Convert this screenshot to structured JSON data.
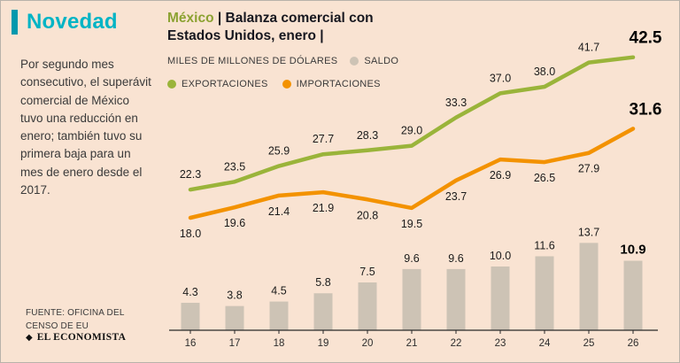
{
  "sidebar": {
    "kicker": "Novedad",
    "body": "Por segundo mes consecutivo, el superávit comercial de México tuvo una reducción en enero; también tuvo su primera baja para un mes de enero desde el 2017.",
    "source": "FUENTE: OFICINA DEL CENSO DE EU",
    "brand": "EL ECONOMISTA",
    "brand_mark": "◆"
  },
  "header": {
    "title_region": "México",
    "title_sep": " | ",
    "title_rest": "Balanza comercial con Estados Unidos, enero |"
  },
  "legend": {
    "units": "MILES DE MILLONES DE DÓLARES",
    "saldo": "SALDO",
    "exportaciones": "EXPORTACIONES",
    "importaciones": "IMPORTACIONES"
  },
  "colors": {
    "background": "#f9e3d2",
    "accent_teal": "#0098ad",
    "kicker_cyan": "#00b4c5",
    "title_green": "#8ca232",
    "dark_text": "#17171f",
    "exportaciones": "#9ab43a",
    "importaciones": "#f39200",
    "saldo": "#cdc3b5",
    "axis": "#2a2a2a"
  },
  "chart_data": {
    "type": "line+bar",
    "title": "México | Balanza comercial con Estados Unidos, enero",
    "units": "MILES DE MILLONES DE DÓLARES",
    "categories": [
      "16",
      "17",
      "18",
      "19",
      "20",
      "21",
      "22",
      "23",
      "24",
      "25",
      "26"
    ],
    "series": [
      {
        "name": "EXPORTACIONES",
        "type": "line",
        "color": "#9ab43a",
        "values": [
          22.3,
          23.5,
          25.9,
          27.7,
          28.3,
          29.0,
          33.3,
          37.0,
          38.0,
          41.7,
          42.5
        ]
      },
      {
        "name": "IMPORTACIONES",
        "type": "line",
        "color": "#f39200",
        "values": [
          18.0,
          19.6,
          21.4,
          21.9,
          20.8,
          19.5,
          23.7,
          26.9,
          26.5,
          27.9,
          31.6
        ]
      },
      {
        "name": "SALDO",
        "type": "bar",
        "color": "#cdc3b5",
        "values": [
          4.3,
          3.8,
          4.5,
          5.8,
          7.5,
          9.6,
          9.6,
          10.0,
          11.6,
          13.7,
          10.9
        ]
      }
    ],
    "legend_position": "top",
    "grid": false,
    "value_labels": true
  }
}
